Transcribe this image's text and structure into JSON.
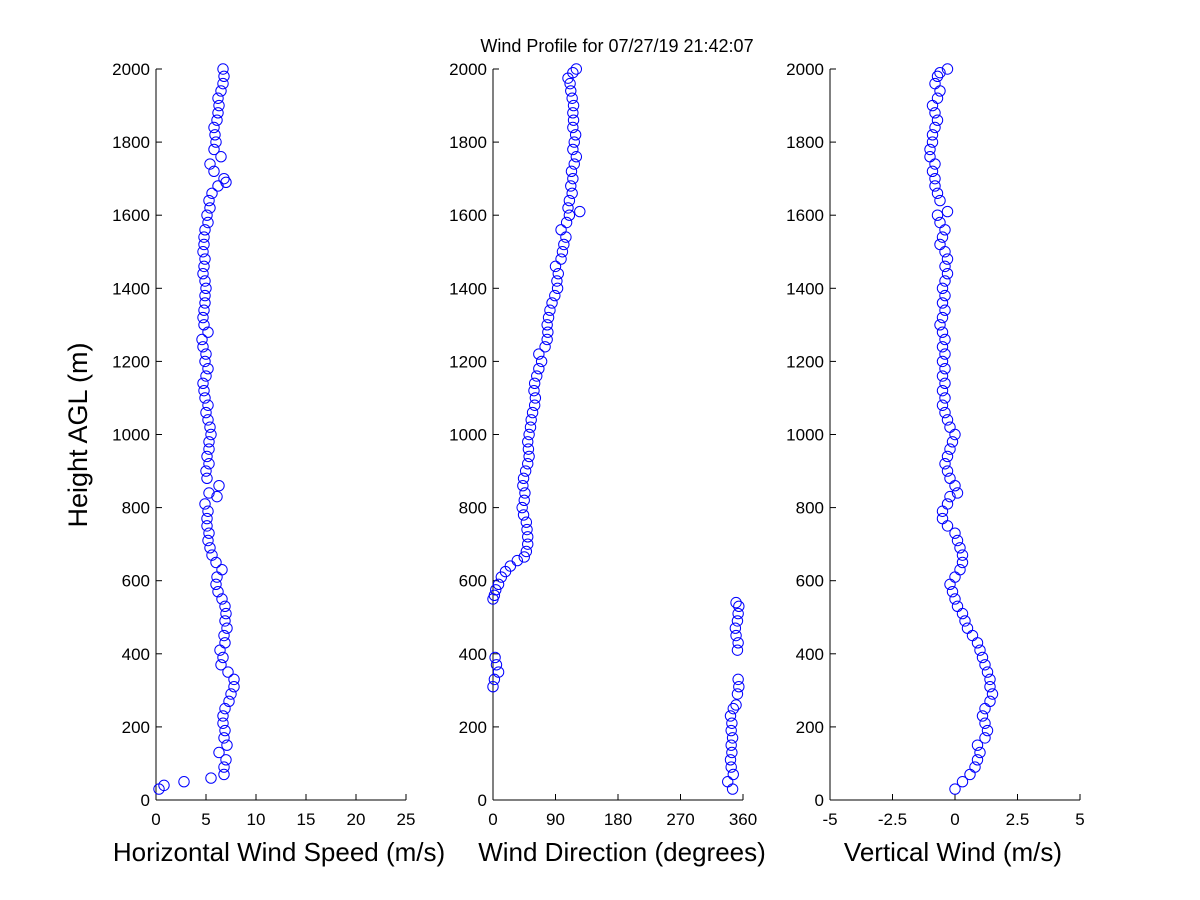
{
  "figure": {
    "title": "Wind Profile for  07/27/19 21:42:07",
    "ylabel": "Height AGL (m)"
  },
  "chart_data": [
    {
      "type": "scatter",
      "xlabel": "Horizontal Wind Speed (m/s)",
      "ylabel": "Height AGL (m)",
      "xlim": [
        0,
        25
      ],
      "ylim": [
        0,
        2000
      ],
      "xticks": [
        0,
        5,
        10,
        15,
        20,
        25
      ],
      "xtick_labels": [
        "0",
        "5",
        "10",
        "15",
        "20",
        "25"
      ],
      "yticks": [
        0,
        200,
        400,
        600,
        800,
        1000,
        1200,
        1400,
        1600,
        1800,
        2000
      ],
      "ytick_labels": [
        "0",
        "200",
        "400",
        "600",
        "800",
        "1000",
        "1200",
        "1400",
        "1600",
        "1800",
        "2000"
      ],
      "marker": "circle",
      "color": "#0000ff",
      "points": [
        [
          0.3,
          30
        ],
        [
          0.8,
          40
        ],
        [
          2.8,
          50
        ],
        [
          5.5,
          60
        ],
        [
          6.8,
          70
        ],
        [
          6.8,
          90
        ],
        [
          7.0,
          110
        ],
        [
          6.3,
          130
        ],
        [
          7.1,
          150
        ],
        [
          6.8,
          170
        ],
        [
          6.9,
          190
        ],
        [
          6.7,
          210
        ],
        [
          6.7,
          230
        ],
        [
          6.9,
          250
        ],
        [
          7.3,
          270
        ],
        [
          7.5,
          290
        ],
        [
          7.8,
          310
        ],
        [
          7.8,
          330
        ],
        [
          7.2,
          350
        ],
        [
          6.5,
          370
        ],
        [
          6.7,
          390
        ],
        [
          6.4,
          410
        ],
        [
          6.9,
          430
        ],
        [
          6.8,
          450
        ],
        [
          7.1,
          470
        ],
        [
          6.9,
          490
        ],
        [
          7.0,
          510
        ],
        [
          6.9,
          530
        ],
        [
          6.6,
          550
        ],
        [
          6.2,
          570
        ],
        [
          6.0,
          590
        ],
        [
          6.1,
          610
        ],
        [
          6.6,
          630
        ],
        [
          6.0,
          650
        ],
        [
          5.6,
          670
        ],
        [
          5.4,
          690
        ],
        [
          5.2,
          710
        ],
        [
          5.3,
          730
        ],
        [
          5.1,
          750
        ],
        [
          5.1,
          770
        ],
        [
          5.2,
          790
        ],
        [
          4.9,
          810
        ],
        [
          6.1,
          830
        ],
        [
          5.3,
          840
        ],
        [
          6.3,
          860
        ],
        [
          5.1,
          880
        ],
        [
          5.0,
          900
        ],
        [
          5.3,
          920
        ],
        [
          5.1,
          940
        ],
        [
          5.3,
          960
        ],
        [
          5.3,
          980
        ],
        [
          5.5,
          1000
        ],
        [
          5.4,
          1020
        ],
        [
          5.2,
          1040
        ],
        [
          5.0,
          1060
        ],
        [
          5.2,
          1080
        ],
        [
          4.9,
          1100
        ],
        [
          4.8,
          1120
        ],
        [
          4.7,
          1140
        ],
        [
          5.0,
          1160
        ],
        [
          5.2,
          1180
        ],
        [
          4.9,
          1200
        ],
        [
          5.0,
          1220
        ],
        [
          4.7,
          1240
        ],
        [
          4.6,
          1260
        ],
        [
          5.2,
          1280
        ],
        [
          4.8,
          1300
        ],
        [
          4.7,
          1320
        ],
        [
          4.8,
          1340
        ],
        [
          4.9,
          1360
        ],
        [
          4.9,
          1380
        ],
        [
          5.0,
          1400
        ],
        [
          4.9,
          1420
        ],
        [
          4.7,
          1440
        ],
        [
          4.8,
          1460
        ],
        [
          4.9,
          1480
        ],
        [
          4.7,
          1500
        ],
        [
          4.8,
          1520
        ],
        [
          4.8,
          1540
        ],
        [
          4.9,
          1560
        ],
        [
          5.2,
          1580
        ],
        [
          5.1,
          1600
        ],
        [
          5.4,
          1620
        ],
        [
          5.3,
          1640
        ],
        [
          5.6,
          1660
        ],
        [
          6.2,
          1680
        ],
        [
          7.0,
          1690
        ],
        [
          6.8,
          1700
        ],
        [
          5.8,
          1720
        ],
        [
          5.4,
          1740
        ],
        [
          6.5,
          1760
        ],
        [
          5.8,
          1780
        ],
        [
          6.0,
          1800
        ],
        [
          5.9,
          1820
        ],
        [
          5.8,
          1840
        ],
        [
          6.1,
          1860
        ],
        [
          6.2,
          1880
        ],
        [
          6.3,
          1900
        ],
        [
          6.2,
          1920
        ],
        [
          6.5,
          1940
        ],
        [
          6.7,
          1960
        ],
        [
          6.8,
          1980
        ],
        [
          6.7,
          2000
        ]
      ]
    },
    {
      "type": "scatter",
      "xlabel": "Wind Direction (degrees)",
      "xlim": [
        0,
        360
      ],
      "ylim": [
        0,
        2000
      ],
      "xticks": [
        0,
        90,
        180,
        270,
        360
      ],
      "xtick_labels": [
        "0",
        "90",
        "180",
        "270",
        "360"
      ],
      "yticks": [
        0,
        200,
        400,
        600,
        800,
        1000,
        1200,
        1400,
        1600,
        1800,
        2000
      ],
      "ytick_labels": [
        "0",
        "200",
        "400",
        "600",
        "800",
        "1000",
        "1200",
        "1400",
        "1600",
        "1800",
        "2000"
      ],
      "marker": "circle",
      "color": "#0000ff",
      "points": [
        [
          345,
          30
        ],
        [
          338,
          50
        ],
        [
          346,
          70
        ],
        [
          343,
          90
        ],
        [
          342,
          110
        ],
        [
          344,
          130
        ],
        [
          343,
          150
        ],
        [
          345,
          170
        ],
        [
          343,
          190
        ],
        [
          344,
          210
        ],
        [
          342,
          230
        ],
        [
          346,
          250
        ],
        [
          350,
          260
        ],
        [
          352,
          290
        ],
        [
          354,
          310
        ],
        [
          353,
          330
        ],
        [
          0,
          310
        ],
        [
          2,
          330
        ],
        [
          8,
          350
        ],
        [
          5,
          370
        ],
        [
          3,
          390
        ],
        [
          352,
          410
        ],
        [
          353,
          430
        ],
        [
          350,
          450
        ],
        [
          349,
          470
        ],
        [
          352,
          490
        ],
        [
          353,
          510
        ],
        [
          354,
          530
        ],
        [
          350,
          540
        ],
        [
          0,
          550
        ],
        [
          2,
          560
        ],
        [
          4,
          575
        ],
        [
          8,
          590
        ],
        [
          12,
          610
        ],
        [
          18,
          625
        ],
        [
          25,
          640
        ],
        [
          35,
          655
        ],
        [
          45,
          665
        ],
        [
          48,
          680
        ],
        [
          50,
          700
        ],
        [
          50,
          720
        ],
        [
          49,
          740
        ],
        [
          48,
          760
        ],
        [
          44,
          780
        ],
        [
          42,
          800
        ],
        [
          45,
          820
        ],
        [
          46,
          840
        ],
        [
          43,
          860
        ],
        [
          44,
          880
        ],
        [
          47,
          900
        ],
        [
          50,
          920
        ],
        [
          52,
          940
        ],
        [
          51,
          960
        ],
        [
          50,
          980
        ],
        [
          52,
          1000
        ],
        [
          54,
          1020
        ],
        [
          55,
          1040
        ],
        [
          57,
          1060
        ],
        [
          60,
          1080
        ],
        [
          61,
          1100
        ],
        [
          59,
          1120
        ],
        [
          60,
          1140
        ],
        [
          63,
          1160
        ],
        [
          66,
          1180
        ],
        [
          70,
          1200
        ],
        [
          66,
          1220
        ],
        [
          75,
          1240
        ],
        [
          78,
          1260
        ],
        [
          79,
          1280
        ],
        [
          78,
          1300
        ],
        [
          80,
          1320
        ],
        [
          82,
          1340
        ],
        [
          85,
          1360
        ],
        [
          89,
          1380
        ],
        [
          93,
          1400
        ],
        [
          92,
          1420
        ],
        [
          94,
          1440
        ],
        [
          90,
          1460
        ],
        [
          98,
          1480
        ],
        [
          100,
          1500
        ],
        [
          102,
          1520
        ],
        [
          105,
          1540
        ],
        [
          98,
          1560
        ],
        [
          106,
          1580
        ],
        [
          110,
          1600
        ],
        [
          125,
          1610
        ],
        [
          108,
          1620
        ],
        [
          110,
          1640
        ],
        [
          114,
          1660
        ],
        [
          112,
          1680
        ],
        [
          115,
          1700
        ],
        [
          113,
          1720
        ],
        [
          117,
          1740
        ],
        [
          120,
          1760
        ],
        [
          115,
          1780
        ],
        [
          117,
          1800
        ],
        [
          119,
          1820
        ],
        [
          115,
          1840
        ],
        [
          116,
          1860
        ],
        [
          115,
          1880
        ],
        [
          116,
          1900
        ],
        [
          114,
          1920
        ],
        [
          112,
          1940
        ],
        [
          111,
          1960
        ],
        [
          108,
          1975
        ],
        [
          115,
          1990
        ],
        [
          120,
          2000
        ]
      ]
    },
    {
      "type": "scatter",
      "xlabel": "Vertical Wind (m/s)",
      "xlim": [
        -5,
        5
      ],
      "ylim": [
        0,
        2000
      ],
      "xticks": [
        -5,
        -2.5,
        0,
        2.5,
        5
      ],
      "xtick_labels": [
        "-5",
        "-2.5",
        "0",
        "2.5",
        "5"
      ],
      "yticks": [
        0,
        200,
        400,
        600,
        800,
        1000,
        1200,
        1400,
        1600,
        1800,
        2000
      ],
      "ytick_labels": [
        "0",
        "200",
        "400",
        "600",
        "800",
        "1000",
        "1200",
        "1400",
        "1600",
        "1800",
        "2000"
      ],
      "marker": "circle",
      "color": "#0000ff",
      "points": [
        [
          0.0,
          30
        ],
        [
          0.3,
          50
        ],
        [
          0.6,
          70
        ],
        [
          0.8,
          90
        ],
        [
          0.9,
          110
        ],
        [
          1.0,
          130
        ],
        [
          0.9,
          150
        ],
        [
          1.2,
          170
        ],
        [
          1.3,
          190
        ],
        [
          1.2,
          210
        ],
        [
          1.1,
          230
        ],
        [
          1.2,
          250
        ],
        [
          1.4,
          270
        ],
        [
          1.5,
          290
        ],
        [
          1.4,
          310
        ],
        [
          1.4,
          330
        ],
        [
          1.3,
          350
        ],
        [
          1.2,
          370
        ],
        [
          1.1,
          390
        ],
        [
          1.0,
          410
        ],
        [
          0.9,
          430
        ],
        [
          0.7,
          450
        ],
        [
          0.5,
          470
        ],
        [
          0.4,
          490
        ],
        [
          0.3,
          510
        ],
        [
          0.1,
          530
        ],
        [
          0.0,
          550
        ],
        [
          -0.1,
          570
        ],
        [
          -0.2,
          590
        ],
        [
          0.0,
          610
        ],
        [
          0.2,
          630
        ],
        [
          0.3,
          650
        ],
        [
          0.3,
          670
        ],
        [
          0.2,
          690
        ],
        [
          0.1,
          710
        ],
        [
          0.0,
          730
        ],
        [
          -0.3,
          750
        ],
        [
          -0.5,
          770
        ],
        [
          -0.5,
          790
        ],
        [
          -0.3,
          810
        ],
        [
          -0.2,
          830
        ],
        [
          0.1,
          840
        ],
        [
          0.0,
          860
        ],
        [
          -0.2,
          880
        ],
        [
          -0.3,
          900
        ],
        [
          -0.4,
          920
        ],
        [
          -0.3,
          940
        ],
        [
          -0.2,
          960
        ],
        [
          -0.1,
          980
        ],
        [
          0.0,
          1000
        ],
        [
          -0.2,
          1020
        ],
        [
          -0.3,
          1040
        ],
        [
          -0.4,
          1060
        ],
        [
          -0.5,
          1080
        ],
        [
          -0.4,
          1100
        ],
        [
          -0.5,
          1120
        ],
        [
          -0.4,
          1140
        ],
        [
          -0.5,
          1160
        ],
        [
          -0.4,
          1180
        ],
        [
          -0.5,
          1200
        ],
        [
          -0.4,
          1220
        ],
        [
          -0.5,
          1240
        ],
        [
          -0.4,
          1260
        ],
        [
          -0.5,
          1280
        ],
        [
          -0.6,
          1300
        ],
        [
          -0.5,
          1320
        ],
        [
          -0.4,
          1340
        ],
        [
          -0.5,
          1360
        ],
        [
          -0.4,
          1380
        ],
        [
          -0.5,
          1400
        ],
        [
          -0.4,
          1420
        ],
        [
          -0.3,
          1440
        ],
        [
          -0.4,
          1460
        ],
        [
          -0.3,
          1480
        ],
        [
          -0.4,
          1500
        ],
        [
          -0.6,
          1520
        ],
        [
          -0.5,
          1540
        ],
        [
          -0.4,
          1560
        ],
        [
          -0.6,
          1580
        ],
        [
          -0.7,
          1600
        ],
        [
          -0.3,
          1610
        ],
        [
          -0.6,
          1640
        ],
        [
          -0.7,
          1660
        ],
        [
          -0.8,
          1680
        ],
        [
          -0.8,
          1700
        ],
        [
          -0.9,
          1720
        ],
        [
          -0.8,
          1740
        ],
        [
          -1.0,
          1760
        ],
        [
          -1.0,
          1780
        ],
        [
          -0.9,
          1800
        ],
        [
          -0.9,
          1820
        ],
        [
          -0.8,
          1840
        ],
        [
          -0.7,
          1860
        ],
        [
          -0.8,
          1880
        ],
        [
          -0.9,
          1900
        ],
        [
          -0.7,
          1920
        ],
        [
          -0.6,
          1940
        ],
        [
          -0.8,
          1960
        ],
        [
          -0.7,
          1980
        ],
        [
          -0.6,
          1990
        ],
        [
          -0.3,
          2000
        ]
      ]
    }
  ]
}
